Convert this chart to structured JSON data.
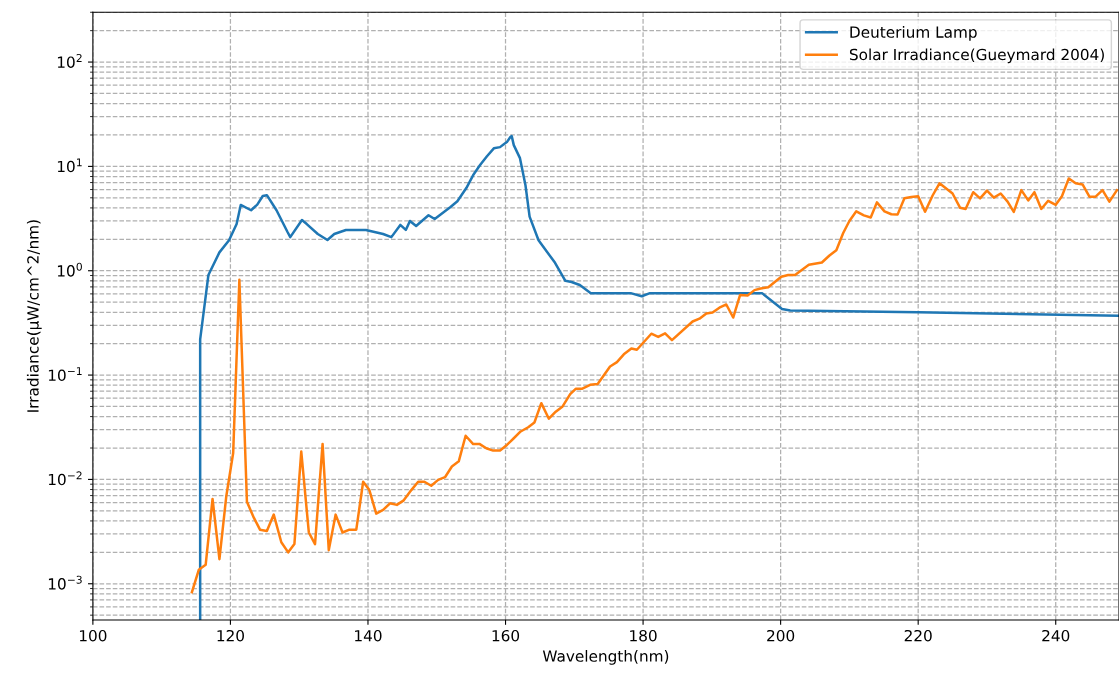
{
  "chart_data": {
    "type": "line",
    "xlabel": "Wavelength(nm)",
    "ylabel": "Irradiance(µW/cm^2/nm)",
    "log": "y",
    "grid": true,
    "legend": "top right",
    "marker": "none",
    "line_style": "solid",
    "xlim": [
      100,
      249.2
    ],
    "xticks": [
      100,
      120,
      140,
      160,
      180,
      200,
      220,
      240
    ],
    "ylim": [
      0.00045,
      300
    ],
    "yticks": [
      {
        "value": 0.001,
        "label": "10$^{−3}$"
      },
      {
        "value": 0.01,
        "label": "10$^{−2}$"
      },
      {
        "value": 0.1,
        "label": "10$^{−1}$"
      },
      {
        "value": 1,
        "label": "10$^{0}$"
      },
      {
        "value": 10,
        "label": "10$^{1}$"
      },
      {
        "value": 100,
        "label": "10$^{2}$"
      }
    ],
    "series": [
      {
        "name": "Deuterium Lamp",
        "color": "#1f77b4",
        "x": [
          115.6,
          115.6,
          116.8,
          118.4,
          119.8,
          120.9,
          121.5,
          123.0,
          123.9,
          124.7,
          125.3,
          126.7,
          128.3,
          128.7,
          130.4,
          131.1,
          132.7,
          134.1,
          135.1,
          136.8,
          139.7,
          142.2,
          143.4,
          144.7,
          145.5,
          146.1,
          147.0,
          148.8,
          149.7,
          152.0,
          153.0,
          154.3,
          155.3,
          156.3,
          157.3,
          158.3,
          159.2,
          159.8,
          160.2,
          160.7,
          160.9,
          161.2,
          162.1,
          162.9,
          163.5,
          164.8,
          167.2,
          168.7,
          169.6,
          170.8,
          172.4,
          175.1,
          178.2,
          179.8,
          181.0,
          197.3,
          200.2,
          201.4,
          220.0,
          249.2
        ],
        "values": [
          0.00046,
          0.22,
          0.91,
          1.5,
          1.96,
          2.8,
          4.27,
          3.8,
          4.3,
          5.2,
          5.3,
          3.8,
          2.35,
          2.1,
          3.06,
          2.8,
          2.25,
          1.97,
          2.25,
          2.46,
          2.46,
          2.25,
          2.1,
          2.75,
          2.46,
          3.0,
          2.68,
          3.4,
          3.13,
          4.08,
          4.64,
          6.2,
          8.26,
          10.3,
          12.5,
          14.9,
          15.3,
          16.4,
          17.1,
          19.1,
          19.5,
          16,
          12,
          6.6,
          3.3,
          1.96,
          1.19,
          0.8,
          0.78,
          0.73,
          0.61,
          0.61,
          0.61,
          0.57,
          0.61,
          0.61,
          0.43,
          0.415,
          0.4,
          0.37
        ]
      },
      {
        "name": "Solar Irradiance(Gueymard 2004)",
        "color": "#ff7f0e",
        "x": [
          114.4,
          115.4,
          116.4,
          117.4,
          118.4,
          119.4,
          120.4,
          121.3,
          122.4,
          123.4,
          124.3,
          125.3,
          126.3,
          127.4,
          128.4,
          129.3,
          130.3,
          131.4,
          132.3,
          133.4,
          134.3,
          135.3,
          136.3,
          137.3,
          138.3,
          139.3,
          140.2,
          141.2,
          142.2,
          143.2,
          144.2,
          145.2,
          146.3,
          147.3,
          148.2,
          149.2,
          150.2,
          151.2,
          152.2,
          153.2,
          154.2,
          155.3,
          156.2,
          157.2,
          158.2,
          159.2,
          160.2,
          161.2,
          162.2,
          163.3,
          164.2,
          165.2,
          166.3,
          167.3,
          168.3,
          169.4,
          170.2,
          171.1,
          172.3,
          173.4,
          175.2,
          176.2,
          177.2,
          178.3,
          179.1,
          181.2,
          182.2,
          183.2,
          184.2,
          187.2,
          188.2,
          189.2,
          190.1,
          191.1,
          192.1,
          193.1,
          194.1,
          195.2,
          196.2,
          197.1,
          198.2,
          200.1,
          201.1,
          202.1,
          204.1,
          206.0,
          207.1,
          208.1,
          209.1,
          210.0,
          211.0,
          212.1,
          213.1,
          214.0,
          215.1,
          216.1,
          217.0,
          218.0,
          219.0,
          220.0,
          221.0,
          222.1,
          223.1,
          225.0,
          226.1,
          226.9,
          228.0,
          229.0,
          230.0,
          231.0,
          232.0,
          233.0,
          233.9,
          235.0,
          236.0,
          236.9,
          237.9,
          238.9,
          240.0,
          240.9,
          241.9,
          242.9,
          243.9,
          244.9,
          245.8,
          246.8,
          247.8,
          248.9
        ],
        "values": [
          0.00083,
          0.00136,
          0.00152,
          0.0065,
          0.00172,
          0.0069,
          0.0179,
          0.82,
          0.0061,
          0.0043,
          0.0033,
          0.0032,
          0.0046,
          0.0025,
          0.002,
          0.0024,
          0.0185,
          0.0031,
          0.0024,
          0.0219,
          0.0021,
          0.0046,
          0.0031,
          0.0033,
          0.0033,
          0.0095,
          0.0079,
          0.0047,
          0.0051,
          0.0059,
          0.0057,
          0.0063,
          0.0079,
          0.0095,
          0.0095,
          0.0087,
          0.0099,
          0.0105,
          0.0133,
          0.0149,
          0.0262,
          0.0218,
          0.0219,
          0.0199,
          0.0189,
          0.0189,
          0.0214,
          0.0248,
          0.0288,
          0.0316,
          0.0351,
          0.0538,
          0.0382,
          0.0446,
          0.0501,
          0.0656,
          0.0738,
          0.0738,
          0.0807,
          0.0822,
          0.121,
          0.133,
          0.158,
          0.18,
          0.175,
          0.249,
          0.232,
          0.251,
          0.216,
          0.326,
          0.347,
          0.39,
          0.397,
          0.442,
          0.475,
          0.356,
          0.585,
          0.58,
          0.652,
          0.675,
          0.695,
          0.877,
          0.91,
          0.91,
          1.14,
          1.2,
          1.4,
          1.57,
          2.3,
          3.0,
          3.71,
          3.39,
          3.24,
          4.52,
          3.71,
          3.48,
          3.45,
          4.94,
          5.08,
          5.17,
          3.67,
          5.26,
          6.89,
          5.5,
          4.01,
          3.91,
          5.66,
          4.94,
          5.86,
          5.02,
          5.5,
          4.6,
          3.67,
          5.92,
          4.72,
          5.66,
          3.91,
          4.68,
          4.28,
          5.17,
          7.67,
          6.89,
          6.71,
          5.13,
          5.13,
          5.92,
          4.6,
          5.92
        ]
      }
    ]
  }
}
